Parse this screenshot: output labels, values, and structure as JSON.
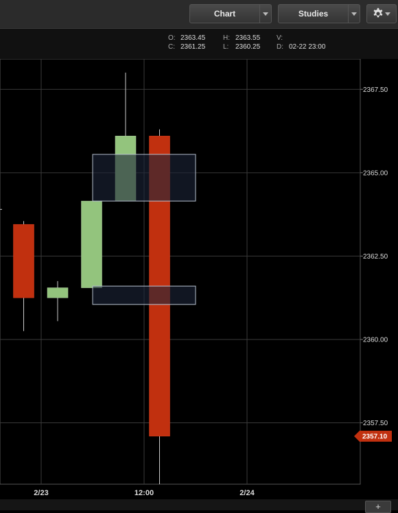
{
  "toolbar": {
    "chart_label": "Chart",
    "studies_label": "Studies",
    "settings_icon": "gear-icon",
    "dropdown_icon": "chevron-down-icon"
  },
  "ohlc": {
    "o_label": "O:",
    "o_value": "2363.45",
    "h_label": "H:",
    "h_value": "2363.55",
    "v_label": "V:",
    "v_value": "",
    "c_label": "C:",
    "c_value": "2361.25",
    "l_label": "L:",
    "l_value": "2360.25",
    "d_label": "D:",
    "d_value": "02-22 23:00"
  },
  "footer": {
    "add_label": "+"
  },
  "colors": {
    "up": "#93c47d",
    "down": "#c1300f",
    "grid": "#3a3a3a",
    "box_fill": "#1c2538",
    "box_stroke": "#b8c2d0",
    "price_tag": "#c1300f"
  },
  "chart_data": {
    "type": "candlestick",
    "y_ticks": [
      "2367.50",
      "2365.00",
      "2362.50",
      "2360.00",
      "2357.50"
    ],
    "y_tick_values": [
      2367.5,
      2365,
      2362.5,
      2360,
      2357.5
    ],
    "ylim": [
      2355.66,
      2368.41
    ],
    "x_ticks": [
      "2/23",
      "12:00",
      "2/24"
    ],
    "x_tick_values": [
      7,
      12,
      17
    ],
    "xlim": [
      5,
      22.5
    ],
    "current_price": "2357.10",
    "current_price_value": 2357.1,
    "candles": [
      {
        "x": 6.15,
        "open": 2363.45,
        "high": 2363.55,
        "low": 2360.25,
        "close": 2361.25
      },
      {
        "x": 7.8,
        "open": 2361.25,
        "high": 2361.75,
        "low": 2360.55,
        "close": 2361.55
      },
      {
        "x": 9.45,
        "open": 2361.55,
        "high": 2364.15,
        "low": 2361.55,
        "close": 2364.15
      },
      {
        "x": 11.1,
        "open": 2364.15,
        "high": 2368.0,
        "low": 2364.15,
        "close": 2366.1
      },
      {
        "x": 12.75,
        "open": 2366.1,
        "high": 2366.3,
        "low": 2355.66,
        "close": 2357.1
      }
    ],
    "zones": [
      {
        "x_start": 9.5,
        "x_end": 14.5,
        "low": 2364.15,
        "high": 2365.55
      },
      {
        "x_start": 9.5,
        "x_end": 14.5,
        "low": 2361.05,
        "high": 2361.6
      }
    ]
  }
}
